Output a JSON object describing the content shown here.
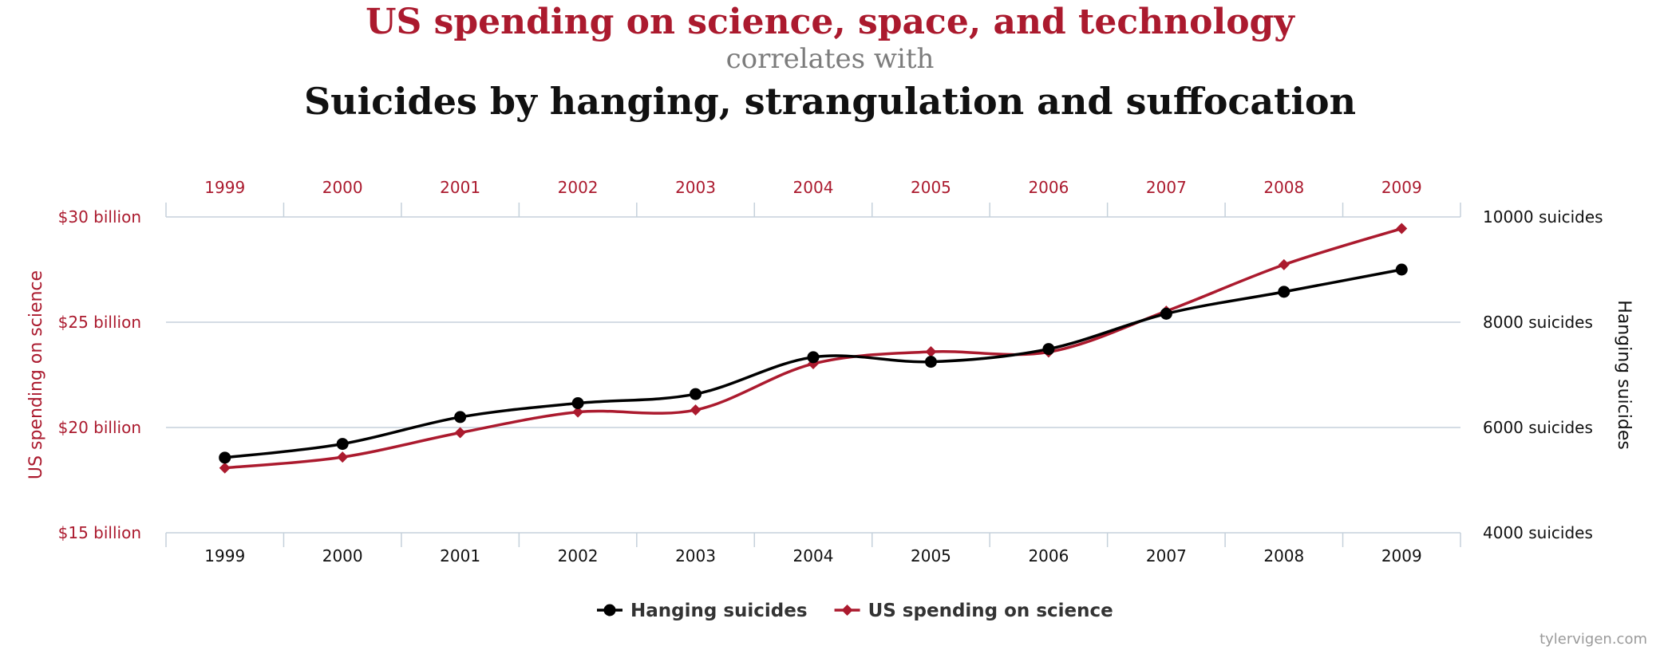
{
  "header": {
    "title_top": "US spending on science, space, and technology",
    "title_middle": "correlates with",
    "title_bottom": "Suicides by hanging, strangulation and suffocation"
  },
  "watermark": "tylervigen.com",
  "colors": {
    "spending": "#ab1a2e",
    "suicides": "#000000",
    "grid": "#c5d1db",
    "watermark": "#9a9a9a"
  },
  "chart_data": {
    "type": "line",
    "x": [
      "1999",
      "2000",
      "2001",
      "2002",
      "2003",
      "2004",
      "2005",
      "2006",
      "2007",
      "2008",
      "2009"
    ],
    "y_left": {
      "label": "US spending on science",
      "range": [
        15,
        30
      ],
      "ticks": [
        {
          "value": 30,
          "label": "$30 billion"
        },
        {
          "value": 25,
          "label": "$25 billion"
        },
        {
          "value": 20,
          "label": "$20 billion"
        },
        {
          "value": 15,
          "label": "$15 billion"
        }
      ]
    },
    "y_right": {
      "label": "Hanging suicides",
      "range": [
        4000,
        10000
      ],
      "ticks": [
        {
          "value": 10000,
          "label": "10000 suicides"
        },
        {
          "value": 8000,
          "label": "8000 suicides"
        },
        {
          "value": 6000,
          "label": "6000 suicides"
        },
        {
          "value": 4000,
          "label": "4000 suicides"
        }
      ]
    },
    "series": [
      {
        "name": "Hanging suicides",
        "axis": "right",
        "marker": "circle",
        "color": "#000000",
        "values": [
          5427,
          5688,
          6198,
          6462,
          6635,
          7336,
          7248,
          7491,
          8161,
          8578,
          9000
        ]
      },
      {
        "name": "US spending on science",
        "axis": "left",
        "marker": "diamond",
        "color": "#ab1a2e",
        "values": [
          18.079,
          18.594,
          19.753,
          20.734,
          20.831,
          23.029,
          23.597,
          23.584,
          25.525,
          27.731,
          29.449
        ]
      }
    ],
    "grid": true,
    "legend": "bottom-center"
  }
}
